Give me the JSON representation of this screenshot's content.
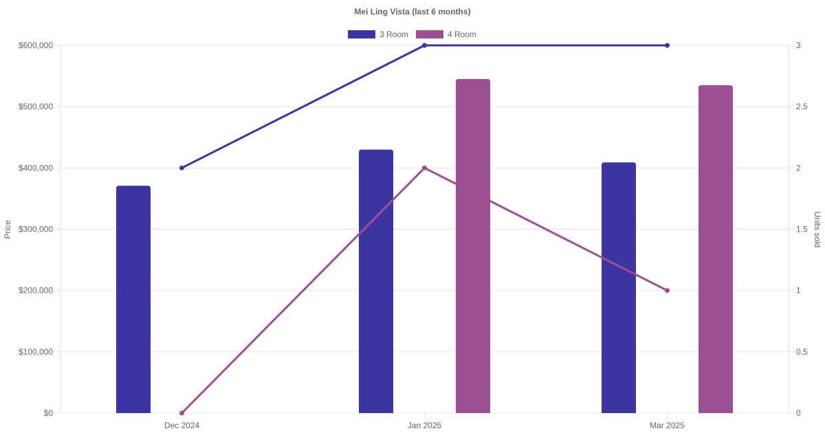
{
  "chart_data": {
    "type": "bar",
    "title": "Mei Ling Vista (last 6 months)",
    "categories": [
      "Dec 2024",
      "Jan 2025",
      "Mar 2025"
    ],
    "y_left": {
      "label": "Price",
      "range": [
        0,
        600000
      ],
      "ticks": [
        "$0",
        "$100,000",
        "$200,000",
        "$300,000",
        "$400,000",
        "$500,000",
        "$600,000"
      ]
    },
    "y_right": {
      "label": "Units sold",
      "range": [
        0,
        3
      ],
      "ticks": [
        "0",
        "0.5",
        "1",
        "1.5",
        "2",
        "2.5",
        "3"
      ]
    },
    "grid": true,
    "legend_position": "top-center",
    "series": [
      {
        "name": "3 Room",
        "color": "#3a35a1",
        "price_values": [
          371000,
          430000,
          409000
        ],
        "units_values": [
          2,
          3,
          3
        ]
      },
      {
        "name": "4 Room",
        "color": "#9d4f93",
        "price_values": [
          null,
          545000,
          535000
        ],
        "units_values": [
          0,
          2,
          1
        ]
      }
    ]
  }
}
